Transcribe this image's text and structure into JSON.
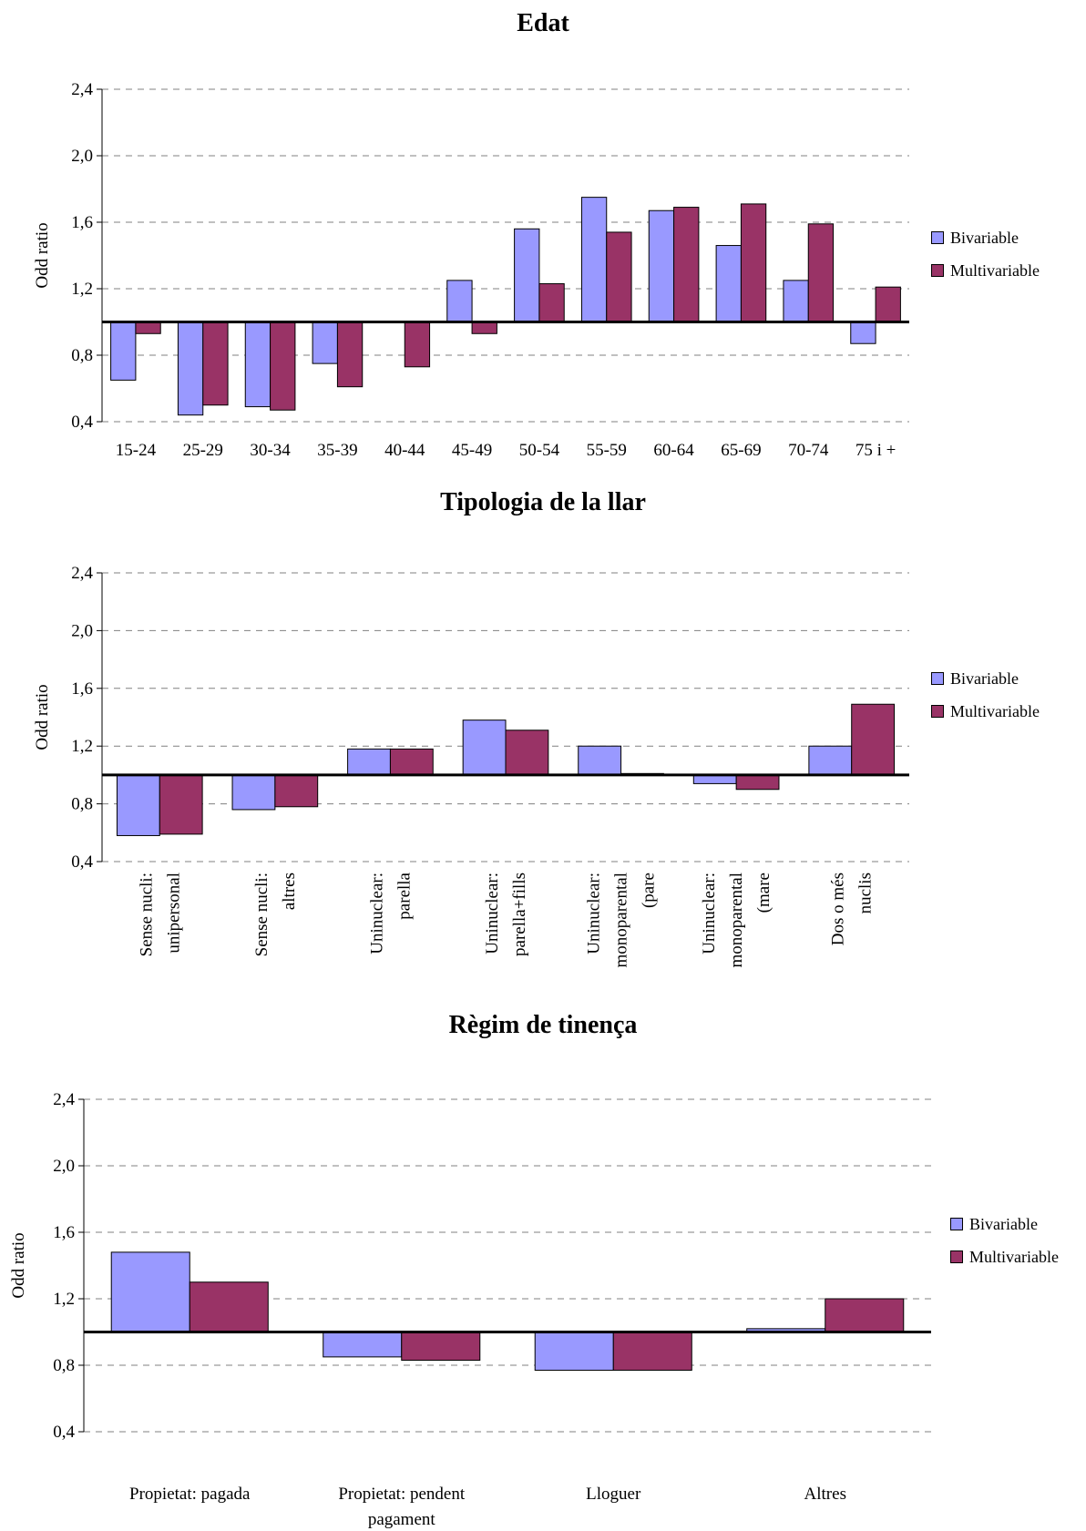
{
  "colors": {
    "bivariable": "#9999ff",
    "multivariable": "#993366",
    "grid": "#808080",
    "axis": "#000000"
  },
  "chart_data": [
    {
      "type": "bar",
      "title": "Edat",
      "ylabel": "Odd ratio",
      "xlabel": "",
      "ylim": [
        0.4,
        2.4
      ],
      "yticks": [
        "0,4",
        "0,8",
        "1,2",
        "1,6",
        "2,0",
        "2,4"
      ],
      "ytick_values": [
        0.4,
        0.8,
        1.2,
        1.6,
        2.0,
        2.4
      ],
      "baseline": 1.0,
      "grid": true,
      "legend_position": "right",
      "categories": [
        "15-24",
        "25-29",
        "30-34",
        "35-39",
        "40-44",
        "45-49",
        "50-54",
        "55-59",
        "60-64",
        "65-69",
        "70-74",
        "75 i +"
      ],
      "series": [
        {
          "name": "Bivariable",
          "values": [
            0.65,
            0.44,
            0.49,
            0.75,
            1.0,
            1.25,
            1.56,
            1.75,
            1.67,
            1.46,
            1.25,
            0.87
          ]
        },
        {
          "name": "Multivariable",
          "values": [
            0.93,
            0.5,
            0.47,
            0.61,
            0.73,
            0.93,
            1.23,
            1.54,
            1.69,
            1.71,
            1.59,
            1.21
          ]
        }
      ]
    },
    {
      "type": "bar",
      "title": "Tipologia de la llar",
      "ylabel": "Odd ratio",
      "xlabel": "",
      "ylim": [
        0.4,
        2.4
      ],
      "yticks": [
        "0,4",
        "0,8",
        "1,2",
        "1,6",
        "2,0",
        "2,4"
      ],
      "ytick_values": [
        0.4,
        0.8,
        1.2,
        1.6,
        2.0,
        2.4
      ],
      "baseline": 1.0,
      "grid": true,
      "legend_position": "right",
      "categories": [
        [
          "Sense nucli:",
          "unipersonal"
        ],
        [
          "Sense nucli:",
          "altres"
        ],
        [
          "Uninuclear:",
          "parella"
        ],
        [
          "Uninuclear:",
          "parella+fills"
        ],
        [
          "Uninuclear:",
          "monoparental",
          "(pare"
        ],
        [
          "Uninuclear:",
          "monoparental",
          "(mare"
        ],
        [
          "Dos o més",
          "nuclis"
        ]
      ],
      "series": [
        {
          "name": "Bivariable",
          "values": [
            0.58,
            0.76,
            1.18,
            1.38,
            1.2,
            0.94,
            1.2
          ]
        },
        {
          "name": "Multivariable",
          "values": [
            0.59,
            0.78,
            1.18,
            1.31,
            1.01,
            0.9,
            1.49
          ]
        }
      ]
    },
    {
      "type": "bar",
      "title": "Règim de tinença",
      "ylabel": "Odd ratio",
      "xlabel": "",
      "ylim": [
        0.4,
        2.4
      ],
      "yticks": [
        "0,4",
        "0,8",
        "1,2",
        "1,6",
        "2,0",
        "2,4"
      ],
      "ytick_values": [
        0.4,
        0.8,
        1.2,
        1.6,
        2.0,
        2.4
      ],
      "baseline": 1.0,
      "grid": true,
      "legend_position": "right",
      "categories": [
        [
          "Propietat: pagada"
        ],
        [
          "Propietat: pendent",
          "pagament"
        ],
        [
          "Lloguer"
        ],
        [
          "Altres"
        ]
      ],
      "series": [
        {
          "name": "Bivariable",
          "values": [
            1.48,
            0.85,
            0.77,
            1.02
          ]
        },
        {
          "name": "Multivariable",
          "values": [
            1.3,
            0.83,
            0.77,
            1.2
          ]
        }
      ]
    }
  ]
}
